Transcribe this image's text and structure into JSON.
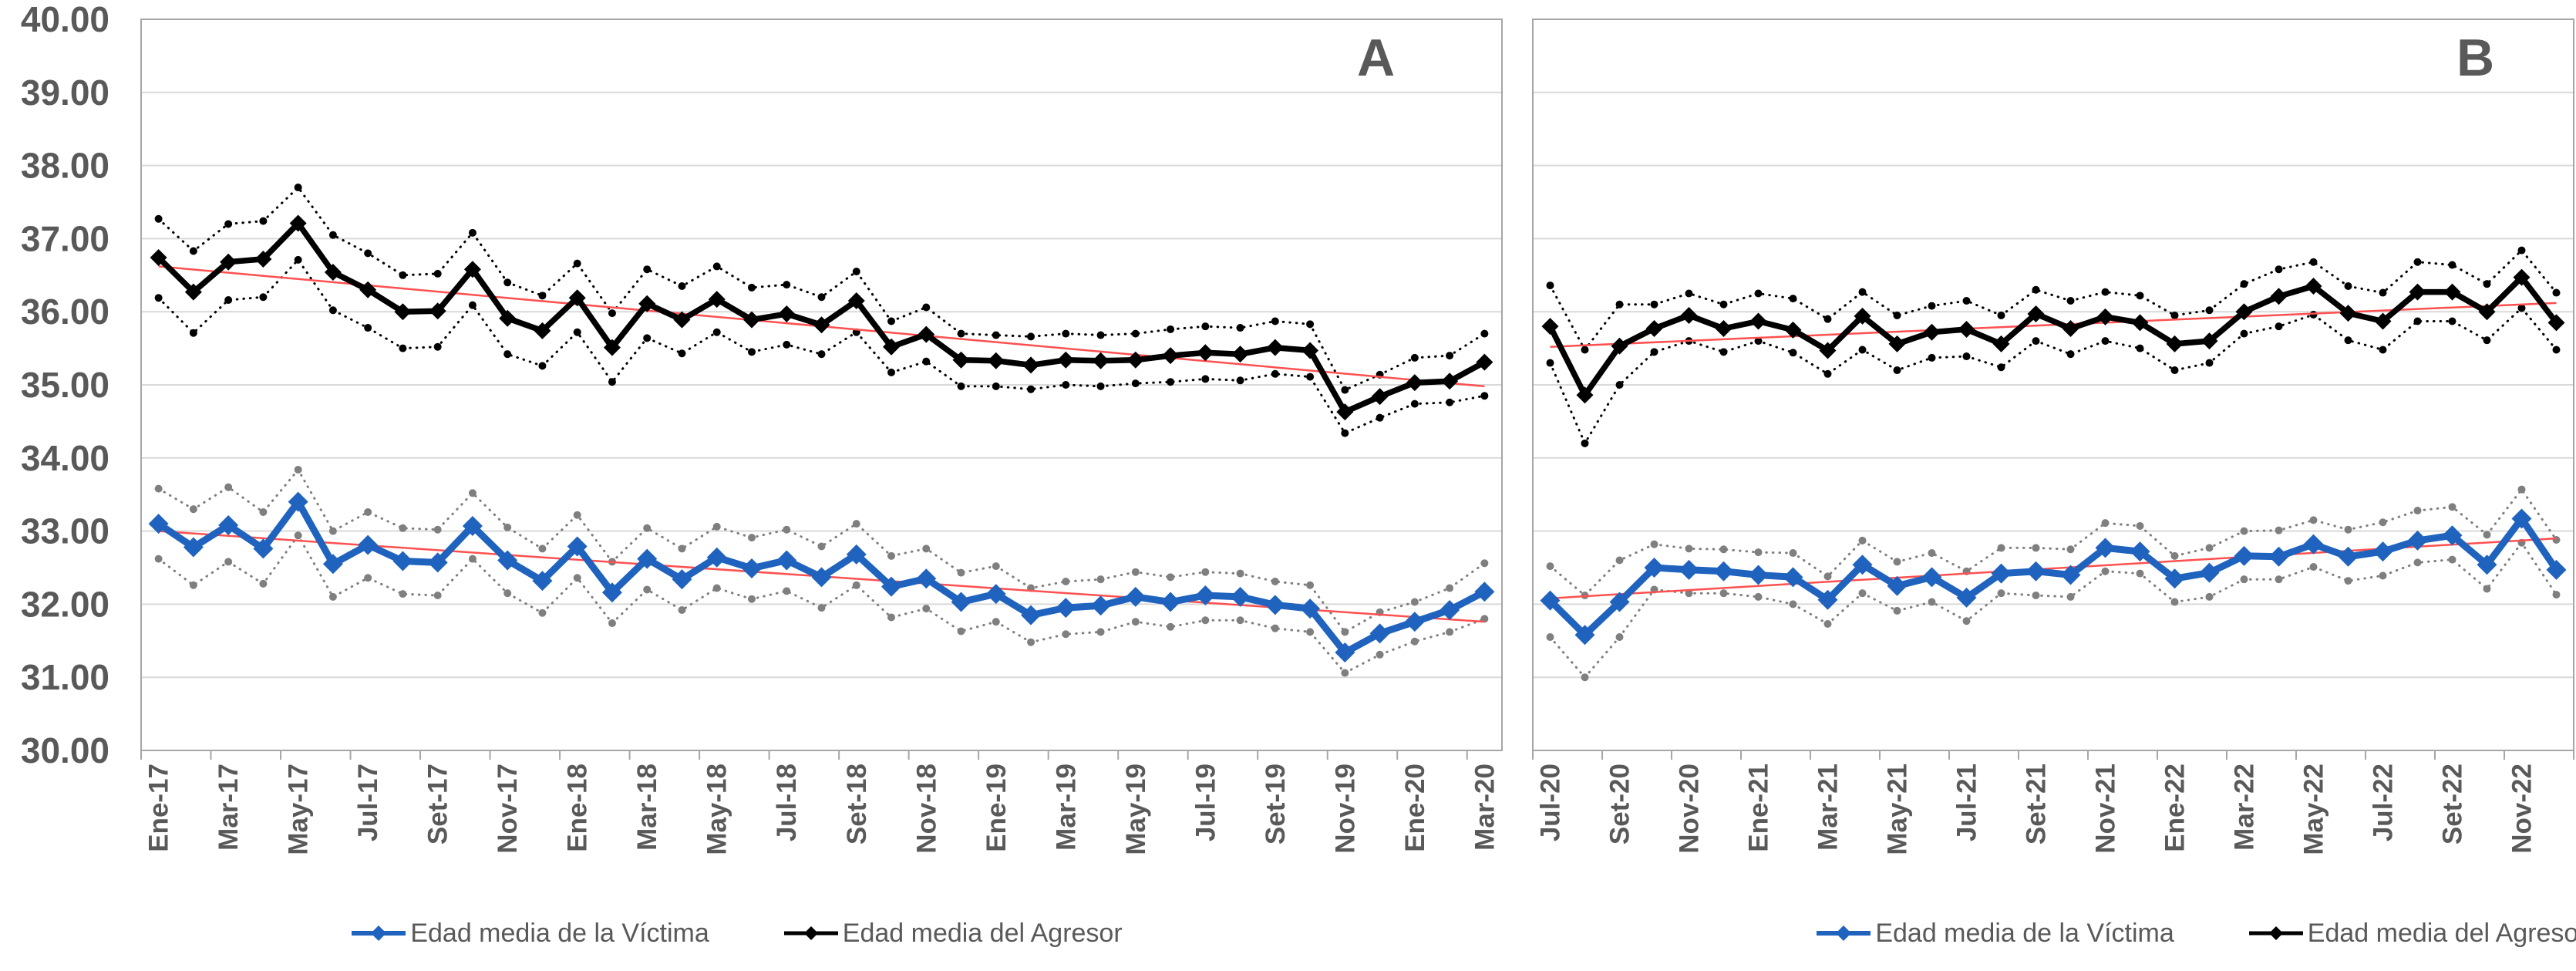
{
  "page": {
    "background": "#FFFFFF"
  },
  "colors": {
    "text": "#595959",
    "gridline": "#D9D9D9",
    "plot_border": "#A6A6A6",
    "victima_line": "#1F63BE",
    "victima_band_dots": "#7F7F7F",
    "agresor_line": "#000000",
    "agresor_band_dots": "#000000",
    "trend_line": "#FF5050"
  },
  "y_axis": {
    "tick_labels": [
      "40.00",
      "39.00",
      "38.00",
      "37.00",
      "36.00",
      "35.00",
      "34.00",
      "33.00",
      "32.00",
      "31.00",
      "30.00"
    ],
    "min": 30,
    "max": 40,
    "step": 1
  },
  "legend": {
    "victima_label": "Edad media de la Víctima",
    "agresor_label": "Edad media del Agresor",
    "victima_marker": "blue-diamond-line",
    "agresor_marker": "black-diamond-line"
  },
  "chart_data": [
    {
      "type": "line",
      "panel_label": "A",
      "ylim": [
        30,
        40
      ],
      "grid": true,
      "x_label_interval": 2,
      "categories": [
        "Ene-17",
        "Feb-17",
        "Mar-17",
        "Abr-17",
        "May-17",
        "Jun-17",
        "Jul-17",
        "Ago-17",
        "Set-17",
        "Oct-17",
        "Nov-17",
        "Dic-17",
        "Ene-18",
        "Feb-18",
        "Mar-18",
        "Abr-18",
        "May-18",
        "Jun-18",
        "Jul-18",
        "Ago-18",
        "Set-18",
        "Oct-18",
        "Nov-18",
        "Dic-18",
        "Ene-19",
        "Feb-19",
        "Mar-19",
        "Abr-19",
        "May-19",
        "Jun-19",
        "Jul-19",
        "Ago-19",
        "Set-19",
        "Oct-19",
        "Nov-19",
        "Dic-19",
        "Ene-20",
        "Feb-20",
        "Mar-20"
      ],
      "series": [
        {
          "name": "Edad media de la Víctima",
          "values": [
            33.1,
            32.78,
            33.08,
            32.76,
            33.4,
            32.55,
            32.81,
            32.59,
            32.57,
            33.07,
            32.6,
            32.32,
            32.79,
            32.16,
            32.62,
            32.34,
            32.64,
            32.49,
            32.6,
            32.37,
            32.68,
            32.24,
            32.35,
            32.03,
            32.14,
            31.85,
            31.95,
            31.98,
            32.1,
            32.03,
            32.12,
            32.1,
            31.99,
            31.94,
            31.34,
            31.6,
            31.76,
            31.92,
            32.17
          ],
          "upper_ci": [
            33.58,
            33.3,
            33.6,
            33.26,
            33.84,
            33.0,
            33.26,
            33.04,
            33.02,
            33.52,
            33.05,
            32.76,
            33.22,
            32.58,
            33.04,
            32.76,
            33.06,
            32.91,
            33.02,
            32.79,
            33.1,
            32.66,
            32.76,
            32.43,
            32.52,
            32.22,
            32.31,
            32.34,
            32.44,
            32.37,
            32.44,
            32.42,
            32.31,
            32.26,
            31.62,
            31.89,
            32.03,
            32.22,
            32.56
          ],
          "lower_ci": [
            32.62,
            32.26,
            32.58,
            32.28,
            32.94,
            32.1,
            32.36,
            32.14,
            32.12,
            32.62,
            32.15,
            31.88,
            32.36,
            31.74,
            32.2,
            31.92,
            32.22,
            32.07,
            32.18,
            31.95,
            32.26,
            31.82,
            31.94,
            31.63,
            31.76,
            31.48,
            31.59,
            31.62,
            31.76,
            31.69,
            31.78,
            31.78,
            31.67,
            31.62,
            31.06,
            31.31,
            31.49,
            31.62,
            31.8
          ],
          "trend": [
            33.0,
            31.76
          ]
        },
        {
          "name": "Edad media del Agresor",
          "values": [
            36.74,
            36.27,
            36.68,
            36.72,
            37.21,
            36.54,
            36.3,
            36.0,
            36.01,
            36.58,
            35.91,
            35.74,
            36.19,
            35.51,
            36.11,
            35.89,
            36.17,
            35.89,
            35.97,
            35.82,
            36.15,
            35.52,
            35.69,
            35.34,
            35.33,
            35.27,
            35.34,
            35.33,
            35.34,
            35.4,
            35.44,
            35.42,
            35.51,
            35.47,
            34.63,
            34.84,
            35.03,
            35.05,
            35.31
          ],
          "upper_ci": [
            37.27,
            36.83,
            37.2,
            37.24,
            37.7,
            37.05,
            36.8,
            36.5,
            36.52,
            37.08,
            36.4,
            36.22,
            36.66,
            35.98,
            36.58,
            36.35,
            36.62,
            36.33,
            36.37,
            36.2,
            36.55,
            35.87,
            36.06,
            35.7,
            35.68,
            35.66,
            35.7,
            35.68,
            35.7,
            35.76,
            35.8,
            35.78,
            35.87,
            35.83,
            34.93,
            35.14,
            35.37,
            35.4,
            35.7
          ],
          "lower_ci": [
            36.19,
            35.71,
            36.16,
            36.2,
            36.71,
            36.02,
            35.78,
            35.5,
            35.52,
            36.09,
            35.42,
            35.26,
            35.72,
            35.04,
            35.64,
            35.43,
            35.72,
            35.45,
            35.55,
            35.42,
            35.72,
            35.17,
            35.32,
            34.98,
            34.98,
            34.94,
            35.0,
            34.98,
            35.02,
            35.04,
            35.08,
            35.06,
            35.15,
            35.11,
            34.34,
            34.55,
            34.74,
            34.76,
            34.85
          ],
          "trend": [
            36.62,
            34.98
          ]
        }
      ]
    },
    {
      "type": "line",
      "panel_label": "B",
      "ylim": [
        30,
        40
      ],
      "grid": true,
      "x_label_interval": 2,
      "categories": [
        "Jul-20",
        "Ago-20",
        "Set-20",
        "Oct-20",
        "Nov-20",
        "Dic-20",
        "Ene-21",
        "Feb-21",
        "Mar-21",
        "Abr-21",
        "May-21",
        "Jun-21",
        "Jul-21",
        "Ago-21",
        "Set-21",
        "Oct-21",
        "Nov-21",
        "Dic-21",
        "Ene-22",
        "Feb-22",
        "Mar-22",
        "Abr-22",
        "May-22",
        "Jun-22",
        "Jul-22",
        "Ago-22",
        "Set-22",
        "Oct-22",
        "Nov-22",
        "Dic-22"
      ],
      "series": [
        {
          "name": "Edad media de la Víctima",
          "values": [
            32.05,
            31.58,
            32.03,
            32.5,
            32.47,
            32.45,
            32.4,
            32.37,
            32.06,
            32.54,
            32.25,
            32.37,
            32.09,
            32.42,
            32.45,
            32.4,
            32.77,
            32.72,
            32.35,
            32.43,
            32.66,
            32.65,
            32.82,
            32.65,
            32.72,
            32.87,
            32.94,
            32.54,
            33.17,
            32.47
          ],
          "upper_ci": [
            32.52,
            32.12,
            32.6,
            32.82,
            32.76,
            32.75,
            32.71,
            32.7,
            32.38,
            32.87,
            32.58,
            32.7,
            32.45,
            32.77,
            32.77,
            32.75,
            33.11,
            33.07,
            32.66,
            32.77,
            33.0,
            33.01,
            33.15,
            33.02,
            33.12,
            33.28,
            33.33,
            32.95,
            33.57,
            32.88
          ],
          "lower_ci": [
            31.55,
            31.0,
            31.55,
            32.2,
            32.15,
            32.15,
            32.1,
            32.0,
            31.73,
            32.15,
            31.91,
            32.03,
            31.77,
            32.15,
            32.12,
            32.1,
            32.45,
            32.42,
            32.03,
            32.1,
            32.34,
            32.34,
            32.51,
            32.32,
            32.39,
            32.57,
            32.61,
            32.21,
            32.84,
            32.13
          ],
          "trend": [
            32.08,
            32.9
          ]
        },
        {
          "name": "Edad media del Agresor",
          "values": [
            35.8,
            34.86,
            35.53,
            35.77,
            35.95,
            35.77,
            35.87,
            35.75,
            35.47,
            35.94,
            35.56,
            35.72,
            35.76,
            35.56,
            35.97,
            35.77,
            35.93,
            35.85,
            35.56,
            35.6,
            36.0,
            36.21,
            36.35,
            35.98,
            35.87,
            36.27,
            36.27,
            36.0,
            36.47,
            35.85
          ],
          "upper_ci": [
            36.36,
            35.48,
            36.1,
            36.1,
            36.25,
            36.1,
            36.25,
            36.18,
            35.9,
            36.27,
            35.95,
            36.08,
            36.15,
            35.95,
            36.3,
            36.15,
            36.27,
            36.22,
            35.95,
            36.02,
            36.38,
            36.58,
            36.68,
            36.35,
            36.26,
            36.68,
            36.64,
            36.38,
            36.84,
            36.26
          ],
          "lower_ci": [
            35.3,
            34.2,
            35.0,
            35.45,
            35.6,
            35.45,
            35.6,
            35.44,
            35.15,
            35.48,
            35.2,
            35.37,
            35.39,
            35.24,
            35.6,
            35.42,
            35.6,
            35.5,
            35.2,
            35.3,
            35.7,
            35.8,
            35.96,
            35.61,
            35.48,
            35.87,
            35.87,
            35.61,
            36.05,
            35.48
          ],
          "trend": [
            35.52,
            36.12
          ]
        }
      ]
    }
  ]
}
